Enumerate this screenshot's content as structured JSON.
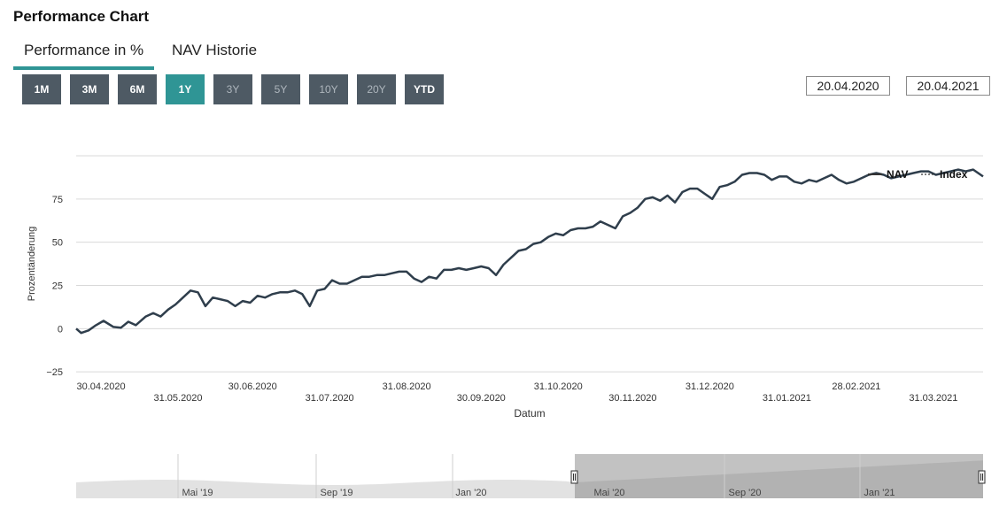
{
  "header": {
    "title": "Performance Chart"
  },
  "tabs": [
    {
      "label": "Performance in %",
      "active": true
    },
    {
      "label": "NAV Historie",
      "active": false
    }
  ],
  "range_buttons": [
    {
      "label": "1M",
      "state": "enabled"
    },
    {
      "label": "3M",
      "state": "enabled"
    },
    {
      "label": "6M",
      "state": "enabled"
    },
    {
      "label": "1Y",
      "state": "active"
    },
    {
      "label": "3Y",
      "state": "disabled"
    },
    {
      "label": "5Y",
      "state": "disabled"
    },
    {
      "label": "10Y",
      "state": "disabled"
    },
    {
      "label": "20Y",
      "state": "disabled"
    },
    {
      "label": "YTD",
      "state": "enabled"
    }
  ],
  "date_range": {
    "from": "20.04.2020",
    "to": "20.04.2021"
  },
  "colors": {
    "accent": "#2f9595",
    "button": "#4e5a64",
    "line": "#2f3e4c",
    "grid": "#d9d9d9"
  },
  "chart_data": {
    "type": "line",
    "title": "",
    "xlabel": "Datum",
    "ylabel": "Prozentänderung",
    "ylim": [
      -28,
      100
    ],
    "yticks": [
      -25,
      0,
      25,
      50,
      75
    ],
    "ytick_labels": [
      "−25",
      "0",
      "25",
      "50",
      "75"
    ],
    "xlim": [
      "2020-04-20",
      "2021-04-20"
    ],
    "xticks": [
      {
        "date": "2020-04-30",
        "label": "30.04.2020",
        "row": 1
      },
      {
        "date": "2020-05-31",
        "label": "31.05.2020",
        "row": 2
      },
      {
        "date": "2020-06-30",
        "label": "30.06.2020",
        "row": 1
      },
      {
        "date": "2020-07-31",
        "label": "31.07.2020",
        "row": 2
      },
      {
        "date": "2020-08-31",
        "label": "31.08.2020",
        "row": 1
      },
      {
        "date": "2020-09-30",
        "label": "30.09.2020",
        "row": 2
      },
      {
        "date": "2020-10-31",
        "label": "31.10.2020",
        "row": 1
      },
      {
        "date": "2020-11-30",
        "label": "30.11.2020",
        "row": 2
      },
      {
        "date": "2020-12-31",
        "label": "31.12.2020",
        "row": 1
      },
      {
        "date": "2021-01-31",
        "label": "31.01.2021",
        "row": 2
      },
      {
        "date": "2021-02-28",
        "label": "28.02.2021",
        "row": 1
      },
      {
        "date": "2021-03-31",
        "label": "31.03.2021",
        "row": 2
      }
    ],
    "legend": {
      "position": "top-right",
      "entries": [
        {
          "name": "NAV",
          "style": "solid"
        },
        {
          "name": "Index",
          "style": "dotted"
        }
      ]
    },
    "grid": true,
    "series": [
      {
        "name": "NAV",
        "x": [
          "2020-04-20",
          "2020-04-22",
          "2020-04-25",
          "2020-04-28",
          "2020-05-01",
          "2020-05-05",
          "2020-05-08",
          "2020-05-11",
          "2020-05-14",
          "2020-05-18",
          "2020-05-21",
          "2020-05-24",
          "2020-05-27",
          "2020-05-30",
          "2020-06-02",
          "2020-06-05",
          "2020-06-08",
          "2020-06-11",
          "2020-06-14",
          "2020-06-17",
          "2020-06-20",
          "2020-06-23",
          "2020-06-26",
          "2020-06-29",
          "2020-07-02",
          "2020-07-05",
          "2020-07-08",
          "2020-07-11",
          "2020-07-14",
          "2020-07-17",
          "2020-07-20",
          "2020-07-23",
          "2020-07-26",
          "2020-07-29",
          "2020-08-01",
          "2020-08-04",
          "2020-08-07",
          "2020-08-10",
          "2020-08-13",
          "2020-08-16",
          "2020-08-19",
          "2020-08-22",
          "2020-08-25",
          "2020-08-28",
          "2020-08-31",
          "2020-09-03",
          "2020-09-06",
          "2020-09-09",
          "2020-09-12",
          "2020-09-15",
          "2020-09-18",
          "2020-09-21",
          "2020-09-24",
          "2020-09-27",
          "2020-09-30",
          "2020-10-03",
          "2020-10-06",
          "2020-10-09",
          "2020-10-12",
          "2020-10-15",
          "2020-10-18",
          "2020-10-21",
          "2020-10-24",
          "2020-10-27",
          "2020-10-30",
          "2020-11-02",
          "2020-11-05",
          "2020-11-08",
          "2020-11-11",
          "2020-11-14",
          "2020-11-17",
          "2020-11-20",
          "2020-11-23",
          "2020-11-26",
          "2020-11-29",
          "2020-12-02",
          "2020-12-05",
          "2020-12-08",
          "2020-12-11",
          "2020-12-14",
          "2020-12-17",
          "2020-12-20",
          "2020-12-23",
          "2020-12-26",
          "2020-12-29",
          "2021-01-01",
          "2021-01-04",
          "2021-01-07",
          "2021-01-10",
          "2021-01-13",
          "2021-01-16",
          "2021-01-19",
          "2021-01-22",
          "2021-01-25",
          "2021-01-28",
          "2021-01-31",
          "2021-02-03",
          "2021-02-06",
          "2021-02-09",
          "2021-02-12",
          "2021-02-15",
          "2021-02-18",
          "2021-02-21",
          "2021-02-24",
          "2021-02-27",
          "2021-03-02",
          "2021-03-05",
          "2021-03-08",
          "2021-03-11",
          "2021-03-14",
          "2021-03-17",
          "2021-03-20",
          "2021-03-23",
          "2021-03-26",
          "2021-03-29",
          "2021-04-01",
          "2021-04-04",
          "2021-04-07",
          "2021-04-10",
          "2021-04-13",
          "2021-04-16",
          "2021-04-20"
        ],
        "values": [
          0,
          -2.5,
          -1,
          2,
          4.5,
          1,
          0.5,
          4,
          2,
          7,
          9,
          7,
          11,
          14,
          18,
          22,
          21,
          13,
          18,
          17,
          16,
          13,
          16,
          15,
          19,
          18,
          20,
          21,
          21,
          22,
          20,
          13,
          22,
          23,
          28,
          26,
          26,
          28,
          30,
          30,
          31,
          31,
          32,
          33,
          33,
          29,
          27,
          30,
          29,
          34,
          34,
          35,
          34,
          35,
          36,
          35,
          31,
          37,
          41,
          45,
          46,
          49,
          50,
          53,
          55,
          54,
          57,
          58,
          58,
          59,
          62,
          60,
          58,
          65,
          67,
          70,
          75,
          76,
          74,
          77,
          73,
          79,
          81,
          81,
          78,
          75,
          82,
          83,
          85,
          89,
          90,
          90,
          89,
          86,
          88,
          88,
          85,
          84,
          86,
          85,
          87,
          89,
          86,
          84,
          85,
          87,
          89,
          90,
          89,
          87,
          88,
          89,
          90,
          91,
          91,
          89,
          90,
          91,
          92,
          91,
          92,
          88
        ]
      }
    ]
  },
  "navigator": {
    "labels": [
      "Mai '19",
      "Sep '19",
      "Jan '20",
      "Mai '20",
      "Sep '20",
      "Jan '21"
    ]
  }
}
